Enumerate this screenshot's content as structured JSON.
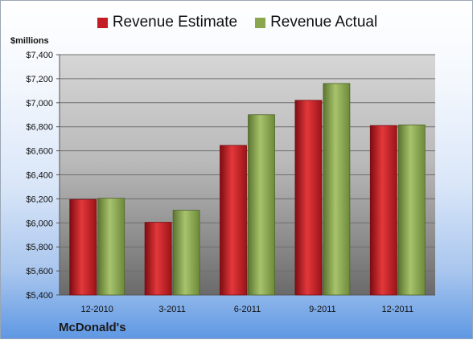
{
  "units_label": "$millions",
  "company_name": "McDonald's",
  "colors": {
    "estimate": "#c41e24",
    "actual": "#8aa74f"
  },
  "chart_data": {
    "type": "bar",
    "categories": [
      "12-2010",
      "3-2011",
      "6-2011",
      "9-2011",
      "12-2011"
    ],
    "series": [
      {
        "name": "Revenue Estimate",
        "values": [
          6195,
          6005,
          6645,
          7020,
          6810
        ]
      },
      {
        "name": "Revenue Actual",
        "values": [
          6205,
          6105,
          6900,
          7160,
          6815
        ]
      }
    ],
    "ylim": [
      5400,
      7400
    ],
    "yticks": [
      "$5,400",
      "$5,600",
      "$5,800",
      "$6,000",
      "$6,200",
      "$6,400",
      "$6,600",
      "$6,800",
      "$7,000",
      "$7,200",
      "$7,400"
    ],
    "ytick_values": [
      5400,
      5600,
      5800,
      6000,
      6200,
      6400,
      6600,
      6800,
      7000,
      7200,
      7400
    ],
    "grid": true,
    "legend": "top"
  }
}
